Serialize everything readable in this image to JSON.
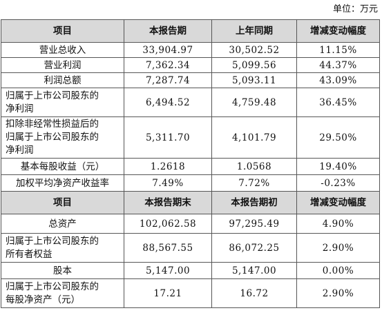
{
  "unit_label": "单位：万元",
  "section1": {
    "header": [
      "项目",
      "本报告期",
      "上年同期",
      "增减变动幅度"
    ],
    "rows": [
      {
        "label": "营业总收入",
        "current": "33,904.97",
        "prior": "30,502.52",
        "change": "11.15%"
      },
      {
        "label": "营业利润",
        "current": "7,362.34",
        "prior": "5,099.56",
        "change": "44.37%"
      },
      {
        "label": "利润总额",
        "current": "7,287.74",
        "prior": "5,093.11",
        "change": "43.09%"
      },
      {
        "label_lines": [
          "归属于上市公司股东的",
          "净利润"
        ],
        "current": "6,494.52",
        "prior": "4,759.48",
        "change": "36.45%"
      },
      {
        "label_lines": [
          "扣除非经常性损益后的",
          "归属于上市公司股东的",
          "净利润"
        ],
        "current": "5,311.70",
        "prior": "4,101.79",
        "change": "29.50%"
      },
      {
        "label": "基本每股收益（元）",
        "current": "1.2618",
        "prior": "1.0568",
        "change": "19.40%"
      },
      {
        "label": "加权平均净资产收益率",
        "current": "7.49%",
        "prior": "7.72%",
        "change": "-0.23%"
      }
    ]
  },
  "section2": {
    "header": [
      "项目",
      "本报告期末",
      "本报告期初",
      "增减变动幅度"
    ],
    "rows": [
      {
        "label": "总资产",
        "end": "102,062.58",
        "begin": "97,295.49",
        "change": "4.90%"
      },
      {
        "label_lines": [
          "归属于上市公司股东的",
          "所有者权益"
        ],
        "end": "88,567.55",
        "begin": "86,072.25",
        "change": "2.90%"
      },
      {
        "label": "股本",
        "end": "5,147.00",
        "begin": "5,147.00",
        "change": "0.00%"
      },
      {
        "label_lines": [
          "归属于上市公司股东的",
          "每股净资产（元）"
        ],
        "end": "17.21",
        "begin": "16.72",
        "change": "2.90%"
      }
    ]
  }
}
